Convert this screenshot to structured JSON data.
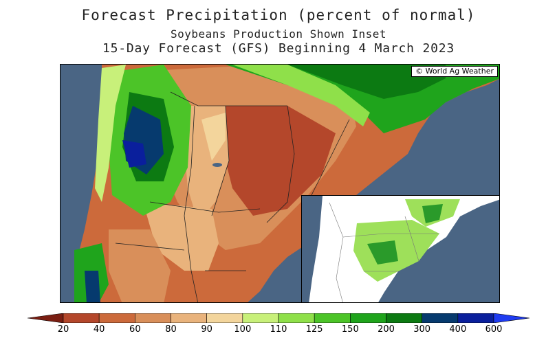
{
  "title": "Forecast Precipitation (percent of normal)",
  "subtitle": "Soybeans Production Shown Inset",
  "subtitle2": "15-Day Forecast (GFS) Beginning 4 March 2023",
  "credit": "© World Ag Weather",
  "legend": {
    "colors": [
      "#7a1e12",
      "#b4472b",
      "#cc6a3b",
      "#d98f5a",
      "#e9b37c",
      "#f3d59c",
      "#c8f07a",
      "#8fe04a",
      "#4cc428",
      "#1fa41c",
      "#0c7a12",
      "#063a6e",
      "#0a1f9c",
      "#1f3cf0"
    ],
    "ticks": [
      "20",
      "40",
      "60",
      "80",
      "90",
      "100",
      "110",
      "125",
      "150",
      "200",
      "300",
      "400",
      "600"
    ]
  },
  "colors": {
    "ocean": "#4a6584",
    "inset_land": "#ffffff",
    "inset_soy": "#9ee05a",
    "inset_soy_dark": "#2a9a2a"
  }
}
